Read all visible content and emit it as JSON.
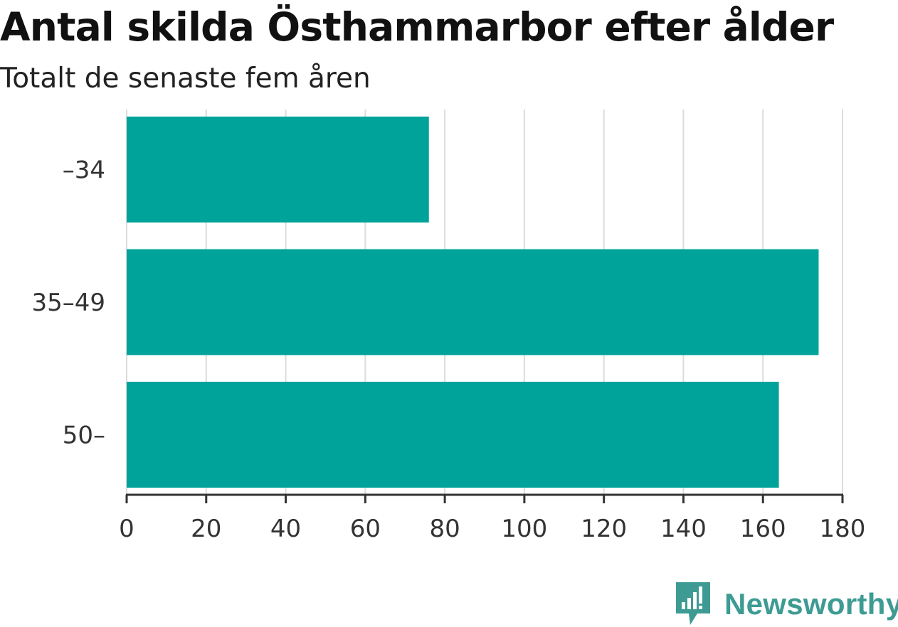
{
  "title": "Antal skilda Östhammarbor efter ålder",
  "subtitle": "Totalt de senaste fem åren",
  "brand": {
    "name": "Newsworthy",
    "icon": "newsworthy-logo-icon",
    "color": "#3d9b93"
  },
  "chart_data": {
    "type": "bar",
    "orientation": "horizontal",
    "categories": [
      "–34",
      "35–49",
      "50–"
    ],
    "values": [
      76,
      174,
      164
    ],
    "xlim": [
      0,
      180
    ],
    "xticks": [
      0,
      20,
      40,
      60,
      80,
      100,
      120,
      140,
      160,
      180
    ],
    "grid": true,
    "bar_color": "#00a39a"
  }
}
